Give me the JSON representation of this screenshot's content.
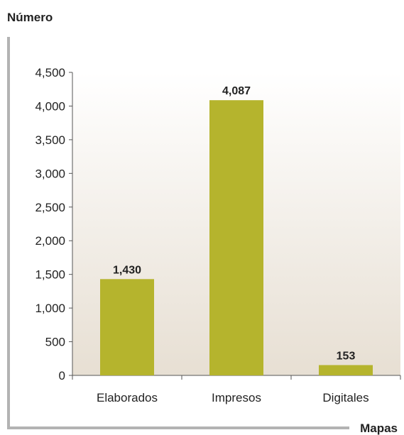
{
  "chart_data": {
    "type": "bar",
    "title": "",
    "ylabel": "Número",
    "xlabel": "Mapas",
    "categories": [
      "Elaborados",
      "Impresos",
      "Digitales"
    ],
    "values": [
      1430,
      4087,
      153
    ],
    "value_labels": [
      "1,430",
      "4,087",
      "153"
    ],
    "ylim": [
      0,
      4500
    ],
    "yticks": [
      0,
      500,
      1000,
      1500,
      2000,
      2500,
      3000,
      3500,
      4000,
      4500
    ],
    "ytick_labels": [
      "0",
      "500",
      "1,000",
      "1,500",
      "2,000",
      "2,500",
      "3,000",
      "3,500",
      "4,000",
      "4,500"
    ],
    "grid": false,
    "legend": "none",
    "colors": {
      "bar": "#B5B42D",
      "plot_bg_top": "#FFFFFF",
      "plot_bg_bottom": "#E7DFD3",
      "frame": "#B3B3B3",
      "axis": "#555555"
    }
  }
}
